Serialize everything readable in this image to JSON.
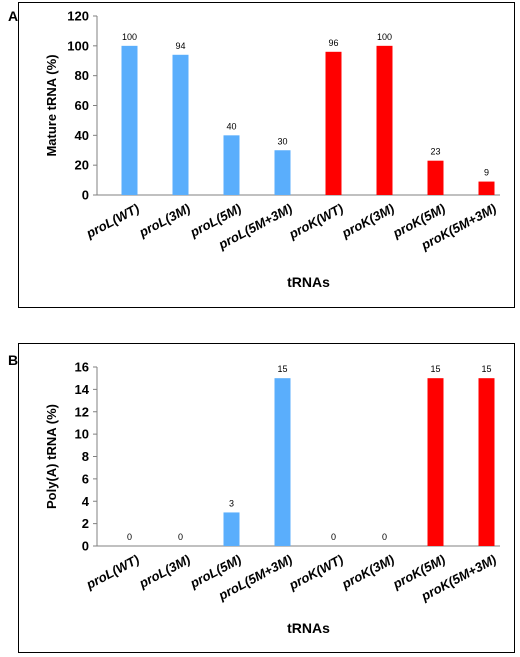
{
  "panels": [
    {
      "letter": "A"
    },
    {
      "letter": "B"
    }
  ],
  "colors": {
    "proL": "#5aaefc",
    "proK": "#ff0000"
  },
  "chart_data": [
    {
      "type": "bar",
      "panel": "A",
      "categories": [
        "proL(WT)",
        "proL(3M)",
        "proL(5M)",
        "proL(5M+3M)",
        "proK(WT)",
        "proK(3M)",
        "proK(5M)",
        "proK(5M+3M)"
      ],
      "values": [
        100,
        94,
        40,
        30,
        96,
        100,
        23,
        9
      ],
      "data_labels": [
        "100",
        "94",
        "40",
        "30",
        "96",
        "100",
        "23",
        "9"
      ],
      "bar_colors": [
        "#5aaefc",
        "#5aaefc",
        "#5aaefc",
        "#5aaefc",
        "#ff0000",
        "#ff0000",
        "#ff0000",
        "#ff0000"
      ],
      "xlabel": "tRNAs",
      "ylabel": "Mature tRNA (%)",
      "ylim": [
        0,
        120
      ],
      "yticks": [
        0,
        20,
        40,
        60,
        80,
        100,
        120
      ],
      "grid": false
    },
    {
      "type": "bar",
      "panel": "B",
      "categories": [
        "proL(WT)",
        "proL(3M)",
        "proL(5M)",
        "proL(5M+3M)",
        "proK(WT)",
        "proK(3M)",
        "proK(5M)",
        "proK(5M+3M)"
      ],
      "values": [
        0,
        0,
        3,
        15,
        0,
        0,
        15,
        15
      ],
      "data_labels": [
        "0",
        "0",
        "3",
        "15",
        "0",
        "0",
        "15",
        "15"
      ],
      "bar_colors": [
        "#5aaefc",
        "#5aaefc",
        "#5aaefc",
        "#5aaefc",
        "#ff0000",
        "#ff0000",
        "#ff0000",
        "#ff0000"
      ],
      "xlabel": "tRNAs",
      "ylabel": "Poly(A) tRNA (%)",
      "ylim": [
        0,
        16
      ],
      "yticks": [
        0,
        2,
        4,
        6,
        8,
        10,
        12,
        14,
        16
      ],
      "grid": false
    }
  ]
}
